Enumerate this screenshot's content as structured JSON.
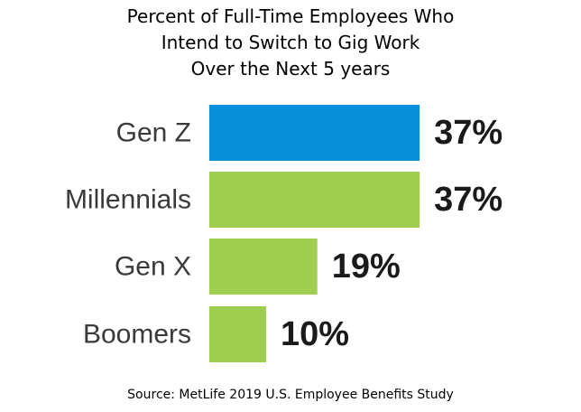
{
  "chart_data": {
    "type": "bar",
    "orientation": "horizontal",
    "title_lines": [
      "Percent of Full-Time Employees Who",
      "Intend to Switch to Gig Work",
      "Over the Next 5 years"
    ],
    "categories": [
      "Gen Z",
      "Millennials",
      "Gen X",
      "Boomers"
    ],
    "values": [
      37,
      37,
      19,
      10
    ],
    "value_labels": [
      "37%",
      "37%",
      "19%",
      "10%"
    ],
    "bar_colors": [
      "#0a90d8",
      "#9fcd4f",
      "#9fcd4f",
      "#9fcd4f"
    ],
    "xlim": [
      0,
      40
    ],
    "grid": false,
    "legend": "none"
  },
  "source": "Source: MetLife 2019 U.S. Employee Benefits Study"
}
